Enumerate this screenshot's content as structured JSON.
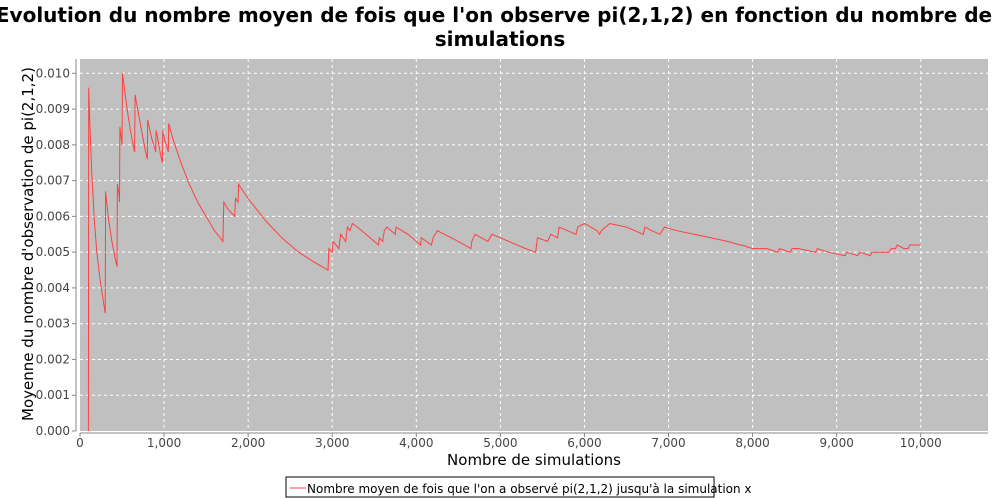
{
  "chart_data": {
    "type": "line",
    "title_line1": "Evolution du nombre moyen de fois que l'on observe pi(2,1,2) en fonction du nombre de",
    "title_line2": "simulations",
    "xlabel": "Nombre de simulations",
    "ylabel": "Moyenne du nombre d'observation de pi(2,1,2)",
    "xlim": [
      0,
      10800
    ],
    "ylim": [
      0,
      0.0104
    ],
    "x_ticks": [
      {
        "value": 0,
        "label": "0"
      },
      {
        "value": 1000,
        "label": "1,000"
      },
      {
        "value": 2000,
        "label": "2,000"
      },
      {
        "value": 3000,
        "label": "3,000"
      },
      {
        "value": 4000,
        "label": "4,000"
      },
      {
        "value": 5000,
        "label": "5,000"
      },
      {
        "value": 6000,
        "label": "6,000"
      },
      {
        "value": 7000,
        "label": "7,000"
      },
      {
        "value": 8000,
        "label": "8,000"
      },
      {
        "value": 9000,
        "label": "9,000"
      },
      {
        "value": 10000,
        "label": "10,000"
      }
    ],
    "y_ticks": [
      {
        "value": 0,
        "label": "0.000"
      },
      {
        "value": 0.001,
        "label": "0.001"
      },
      {
        "value": 0.002,
        "label": "0.002"
      },
      {
        "value": 0.003,
        "label": "0.003"
      },
      {
        "value": 0.004,
        "label": "0.004"
      },
      {
        "value": 0.005,
        "label": "0.005"
      },
      {
        "value": 0.006,
        "label": "0.006"
      },
      {
        "value": 0.007,
        "label": "0.007"
      },
      {
        "value": 0.008,
        "label": "0.008"
      },
      {
        "value": 0.009,
        "label": "0.009"
      },
      {
        "value": 0.01,
        "label": "0.010"
      }
    ],
    "grid": true,
    "legend_position": "bottom-center",
    "colors": {
      "line": "#ff4040",
      "plot_background": "#c0c0c0",
      "grid": "#ffffff",
      "axis": "#888888"
    },
    "series": [
      {
        "name": "Nombre moyen de fois que l'on a observé pi(2,1,2) jusqu'à la simulation x",
        "points": [
          [
            100,
            0.0
          ],
          [
            104,
            0.0096
          ],
          [
            115,
            0.0087
          ],
          [
            140,
            0.0072
          ],
          [
            170,
            0.0059
          ],
          [
            200,
            0.005
          ],
          [
            240,
            0.0042
          ],
          [
            280,
            0.0036
          ],
          [
            300,
            0.0033
          ],
          [
            305,
            0.0067
          ],
          [
            340,
            0.0059
          ],
          [
            380,
            0.0053
          ],
          [
            420,
            0.0048
          ],
          [
            440,
            0.0046
          ],
          [
            445,
            0.0069
          ],
          [
            465,
            0.0066
          ],
          [
            470,
            0.0064
          ],
          [
            475,
            0.0085
          ],
          [
            500,
            0.008
          ],
          [
            505,
            0.01
          ],
          [
            560,
            0.009
          ],
          [
            600,
            0.0084
          ],
          [
            640,
            0.0079
          ],
          [
            650,
            0.0078
          ],
          [
            655,
            0.0094
          ],
          [
            700,
            0.0088
          ],
          [
            740,
            0.0083
          ],
          [
            780,
            0.0078
          ],
          [
            800,
            0.0076
          ],
          [
            805,
            0.0087
          ],
          [
            850,
            0.0082
          ],
          [
            890,
            0.0079
          ],
          [
            900,
            0.0078
          ],
          [
            905,
            0.0084
          ],
          [
            930,
            0.0081
          ],
          [
            960,
            0.0077
          ],
          [
            980,
            0.0075
          ],
          [
            985,
            0.0084
          ],
          [
            1010,
            0.0081
          ],
          [
            1040,
            0.0079
          ],
          [
            1050,
            0.0078
          ],
          [
            1055,
            0.0086
          ],
          [
            1100,
            0.0082
          ],
          [
            1200,
            0.0075
          ],
          [
            1300,
            0.0069
          ],
          [
            1400,
            0.0064
          ],
          [
            1500,
            0.006
          ],
          [
            1600,
            0.0056
          ],
          [
            1700,
            0.0053
          ],
          [
            1710,
            0.0064
          ],
          [
            1760,
            0.0062
          ],
          [
            1840,
            0.006
          ],
          [
            1850,
            0.0065
          ],
          [
            1880,
            0.0064
          ],
          [
            1885,
            0.0069
          ],
          [
            2000,
            0.0065
          ],
          [
            2200,
            0.0059
          ],
          [
            2400,
            0.0054
          ],
          [
            2600,
            0.005
          ],
          [
            2800,
            0.0047
          ],
          [
            2950,
            0.0045
          ],
          [
            2960,
            0.0051
          ],
          [
            3000,
            0.005
          ],
          [
            3010,
            0.0053
          ],
          [
            3080,
            0.0051
          ],
          [
            3100,
            0.0055
          ],
          [
            3160,
            0.0053
          ],
          [
            3180,
            0.0057
          ],
          [
            3210,
            0.0056
          ],
          [
            3240,
            0.0058
          ],
          [
            3300,
            0.0057
          ],
          [
            3450,
            0.0054
          ],
          [
            3550,
            0.0052
          ],
          [
            3560,
            0.0054
          ],
          [
            3600,
            0.0053
          ],
          [
            3620,
            0.0056
          ],
          [
            3650,
            0.0057
          ],
          [
            3750,
            0.0055
          ],
          [
            3760,
            0.0057
          ],
          [
            3900,
            0.0055
          ],
          [
            4000,
            0.0053
          ],
          [
            4050,
            0.0052
          ],
          [
            4060,
            0.0054
          ],
          [
            4180,
            0.0052
          ],
          [
            4200,
            0.0054
          ],
          [
            4250,
            0.0056
          ],
          [
            4500,
            0.0053
          ],
          [
            4650,
            0.0051
          ],
          [
            4660,
            0.0053
          ],
          [
            4700,
            0.0055
          ],
          [
            4850,
            0.0053
          ],
          [
            4900,
            0.0055
          ],
          [
            5100,
            0.0053
          ],
          [
            5300,
            0.0051
          ],
          [
            5420,
            0.005
          ],
          [
            5440,
            0.0054
          ],
          [
            5560,
            0.0053
          ],
          [
            5600,
            0.0055
          ],
          [
            5680,
            0.0054
          ],
          [
            5700,
            0.0057
          ],
          [
            5800,
            0.0056
          ],
          [
            5900,
            0.0055
          ],
          [
            5920,
            0.0057
          ],
          [
            6000,
            0.0058
          ],
          [
            6150,
            0.0056
          ],
          [
            6180,
            0.0055
          ],
          [
            6200,
            0.0056
          ],
          [
            6300,
            0.0058
          ],
          [
            6500,
            0.0057
          ],
          [
            6700,
            0.0055
          ],
          [
            6720,
            0.0057
          ],
          [
            6800,
            0.0056
          ],
          [
            6900,
            0.0055
          ],
          [
            6950,
            0.0057
          ],
          [
            7100,
            0.0056
          ],
          [
            7300,
            0.0055
          ],
          [
            7500,
            0.0054
          ],
          [
            7700,
            0.0053
          ],
          [
            7850,
            0.0052
          ],
          [
            7870,
            0.0052
          ],
          [
            8000,
            0.0051
          ],
          [
            8150,
            0.0051
          ],
          [
            8170,
            0.0051
          ],
          [
            8300,
            0.005
          ],
          [
            8320,
            0.0051
          ],
          [
            8450,
            0.005
          ],
          [
            8470,
            0.0051
          ],
          [
            8550,
            0.0051
          ],
          [
            8750,
            0.005
          ],
          [
            8770,
            0.0051
          ],
          [
            8900,
            0.005
          ],
          [
            9100,
            0.0049
          ],
          [
            9120,
            0.005
          ],
          [
            9250,
            0.0049
          ],
          [
            9280,
            0.005
          ],
          [
            9400,
            0.0049
          ],
          [
            9420,
            0.005
          ],
          [
            9500,
            0.005
          ],
          [
            9530,
            0.005
          ],
          [
            9620,
            0.005
          ],
          [
            9650,
            0.0051
          ],
          [
            9700,
            0.0051
          ],
          [
            9720,
            0.0052
          ],
          [
            9800,
            0.0051
          ],
          [
            9850,
            0.0051
          ],
          [
            9870,
            0.0052
          ],
          [
            9930,
            0.0052
          ],
          [
            9950,
            0.0052
          ],
          [
            10000,
            0.0052
          ]
        ]
      }
    ]
  }
}
